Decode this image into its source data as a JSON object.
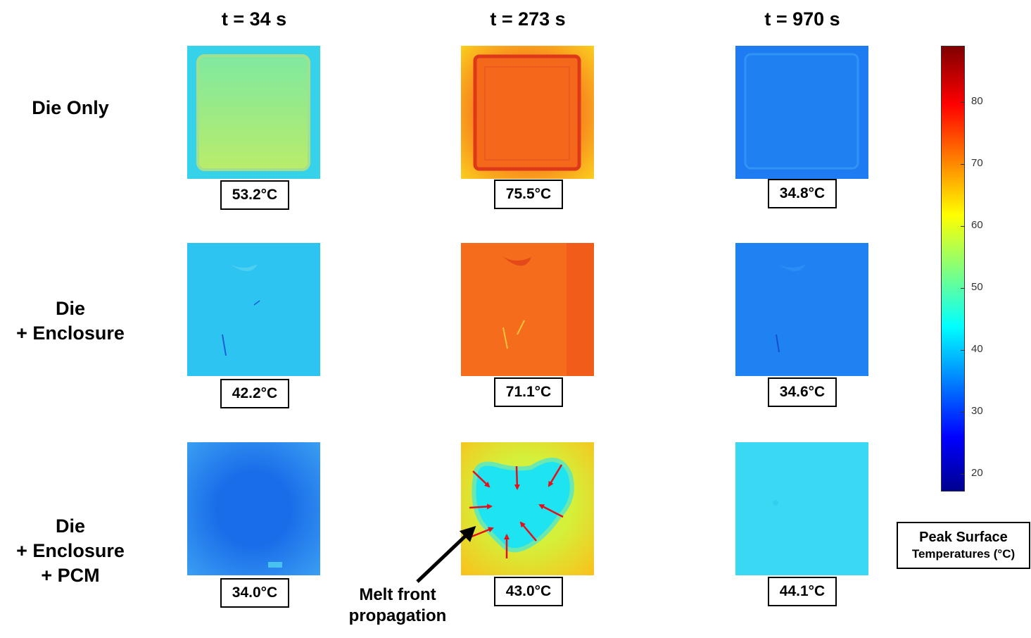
{
  "columns": [
    {
      "title": "t = 34 s"
    },
    {
      "title": "t = 273 s"
    },
    {
      "title": "t = 970 s"
    }
  ],
  "rows": [
    {
      "label_lines": [
        "Die Only"
      ]
    },
    {
      "label_lines": [
        "Die",
        "+ Enclosure"
      ]
    },
    {
      "label_lines": [
        "Die",
        "+ Enclosure",
        "+ PCM"
      ]
    }
  ],
  "peak_temperatures": [
    [
      "53.2°C",
      "75.5°C",
      "34.8°C"
    ],
    [
      "42.2°C",
      "71.1°C",
      "34.6°C"
    ],
    [
      "34.0°C",
      "43.0°C",
      "44.1°C"
    ]
  ],
  "annotation": {
    "line1": "Melt front",
    "line2": "propagation"
  },
  "colorbar": {
    "min": 17,
    "max": 89,
    "ticks": [
      "80",
      "70",
      "60",
      "50",
      "40",
      "30",
      "20"
    ],
    "colormap": "jet",
    "legend_line1": "Peak Surface",
    "legend_line2": "Temperatures (°C)"
  },
  "colors": {
    "arrow_red": "#e3101b",
    "pointer_black": "#000000"
  }
}
